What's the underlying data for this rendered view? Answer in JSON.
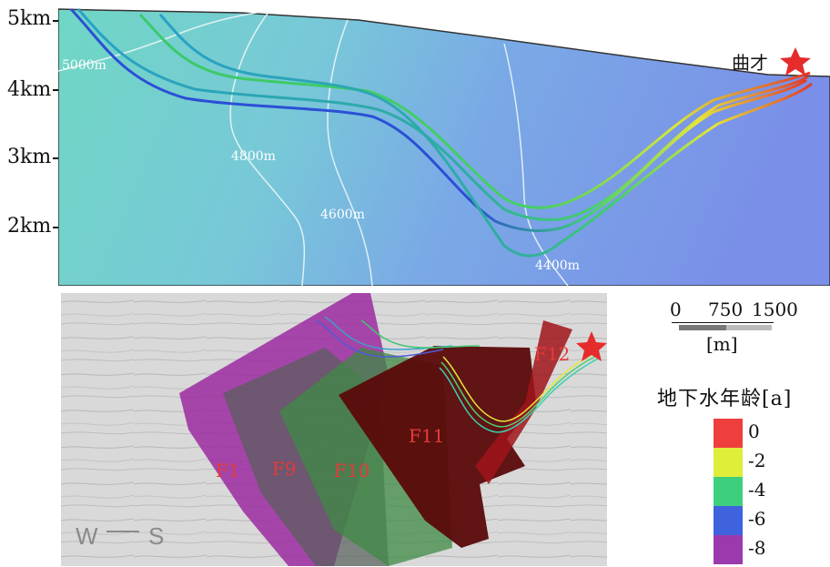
{
  "top_section": {
    "y_axis_labels": [
      "5km",
      "4km",
      "3km",
      "2km"
    ],
    "contour_labels": [
      "5000m",
      "4800m",
      "4600m",
      "4400m"
    ],
    "site_label": "曲才",
    "site_marker_icon": "star-icon"
  },
  "bottom_section": {
    "fault_labels": [
      "F1",
      "F9",
      "F10",
      "F11",
      "F12"
    ],
    "compass": {
      "west": "W",
      "south": "S"
    },
    "site_marker_icon": "star-icon"
  },
  "scale_bar": {
    "ticks": [
      "0",
      "750",
      "1500"
    ],
    "unit": "[m]"
  },
  "legend": {
    "title": "地下水年龄[a]",
    "entries": [
      {
        "label": "0",
        "color": "#ef3e3e"
      },
      {
        "label": "-2",
        "color": "#dfee38"
      },
      {
        "label": "-4",
        "color": "#3ecf7e"
      },
      {
        "label": "-6",
        "color": "#3f63de"
      },
      {
        "label": "-8",
        "color": "#9b39ad"
      }
    ]
  },
  "colors": {
    "marker": "#e52b2b",
    "fault_purple": "#9b2aa0",
    "fault_green": "#3f8a44",
    "fault_darkred": "#5a0a0a"
  }
}
